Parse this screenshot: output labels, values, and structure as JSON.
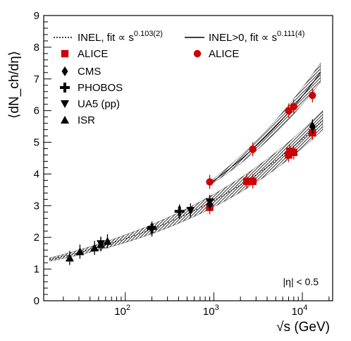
{
  "chart_data": {
    "type": "scatter",
    "title": "",
    "xlabel": "√s (GeV)",
    "ylabel": "⟨dN_ch/dη⟩",
    "xscale": "log",
    "xlim": [
      12,
      22000
    ],
    "ylim": [
      0,
      9
    ],
    "yticks": [
      0,
      1,
      2,
      3,
      4,
      5,
      6,
      7,
      8,
      9
    ],
    "xticks": [
      {
        "value": 100,
        "base": "10",
        "exp": "2"
      },
      {
        "value": 1000,
        "base": "10",
        "exp": "3"
      },
      {
        "value": 10000,
        "base": "10",
        "exp": "4"
      }
    ],
    "annotation": "|η| < 0.5",
    "grid": false,
    "legend": [
      {
        "style": "dotted-line",
        "text": "INEL, fit ∝ s",
        "sup": "0.103(2)"
      },
      {
        "style": "solid-line",
        "text": "INEL>0, fit ∝ s",
        "sup": "0.111(4)"
      },
      {
        "style": "red-square",
        "text": "ALICE"
      },
      {
        "style": "red-circle",
        "text": "ALICE"
      },
      {
        "style": "black-diamond",
        "text": "CMS"
      },
      {
        "style": "black-cross",
        "text": "PHOBOS"
      },
      {
        "style": "black-triangle-down",
        "text": "UA5 (pp)"
      },
      {
        "style": "black-triangle-up",
        "text": "ISR"
      }
    ],
    "fits": [
      {
        "name": "INEL",
        "exponent": 0.103,
        "x_range": [
          14,
          17000
        ],
        "y_at_14": 1.3,
        "y_at_17000": 5.7
      },
      {
        "name": "INEL>0",
        "exponent": 0.111,
        "x_range": [
          900,
          16000
        ],
        "y_at_900": 3.7,
        "y_at_16000": 7.2
      }
    ],
    "series": [
      {
        "name": "ALICE INEL",
        "marker": "square",
        "color": "#cc0000",
        "points": [
          [
            900,
            2.95
          ],
          [
            2360,
            3.77
          ],
          [
            2760,
            3.77
          ],
          [
            7000,
            4.6
          ],
          [
            7200,
            4.72
          ],
          [
            8000,
            4.68
          ],
          [
            13000,
            5.3
          ]
        ]
      },
      {
        "name": "ALICE INEL>0",
        "marker": "circle",
        "color": "#cc0000",
        "points": [
          [
            900,
            3.75
          ],
          [
            2760,
            4.78
          ],
          [
            7000,
            6.0
          ],
          [
            8000,
            6.12
          ],
          [
            13000,
            6.48
          ]
        ]
      },
      {
        "name": "CMS",
        "marker": "diamond",
        "color": "#000000",
        "points": [
          [
            900,
            3.05
          ],
          [
            13000,
            5.5
          ]
        ]
      },
      {
        "name": "PHOBOS",
        "marker": "cross",
        "color": "#000000",
        "points": [
          [
            200,
            2.28
          ],
          [
            410,
            2.82
          ]
        ]
      },
      {
        "name": "UA5 (pp)",
        "marker": "triangle-down",
        "color": "#000000",
        "points": [
          [
            53,
            1.8
          ],
          [
            200,
            2.25
          ],
          [
            546,
            2.85
          ],
          [
            900,
            3.12
          ]
        ]
      },
      {
        "name": "ISR",
        "marker": "triangle-up",
        "color": "#000000",
        "points": [
          [
            23.6,
            1.35
          ],
          [
            30.8,
            1.55
          ],
          [
            45,
            1.67
          ],
          [
            53,
            1.78
          ],
          [
            63,
            1.88
          ]
        ]
      }
    ]
  }
}
